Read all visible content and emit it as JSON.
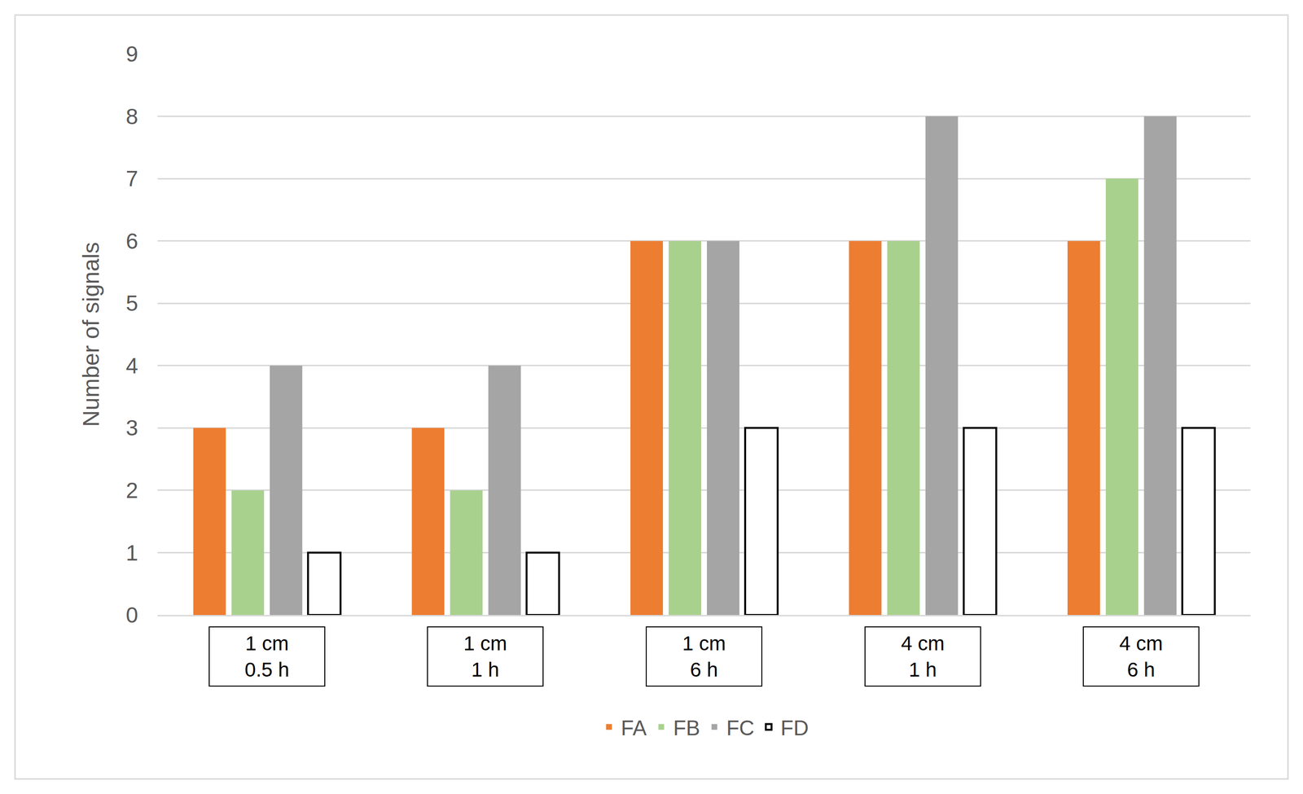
{
  "chart_data": {
    "type": "bar",
    "categories": [
      "1 cm\n0.5 h",
      "1 cm\n1 h",
      "1 cm\n6 h",
      "4 cm\n1 h",
      "4 cm\n6 h"
    ],
    "y_label": "Number of signals",
    "series": [
      {
        "name": "FA",
        "color": "#ed7d31",
        "values": [
          3,
          3,
          6,
          6,
          6
        ]
      },
      {
        "name": "FB",
        "color": "#a9d18e",
        "values": [
          2,
          2,
          6,
          6,
          7
        ]
      },
      {
        "name": "FC",
        "color": "#a5a5a5",
        "values": [
          4,
          4,
          6,
          8,
          8
        ]
      },
      {
        "name": "FD",
        "color": "#ffffff",
        "values": [
          1,
          1,
          3,
          3,
          3
        ]
      }
    ],
    "ylim": [
      0,
      9
    ],
    "yticks": [
      0,
      1,
      2,
      3,
      4,
      5,
      6,
      7,
      8,
      9
    ],
    "grid": true,
    "legend": "bottom"
  }
}
